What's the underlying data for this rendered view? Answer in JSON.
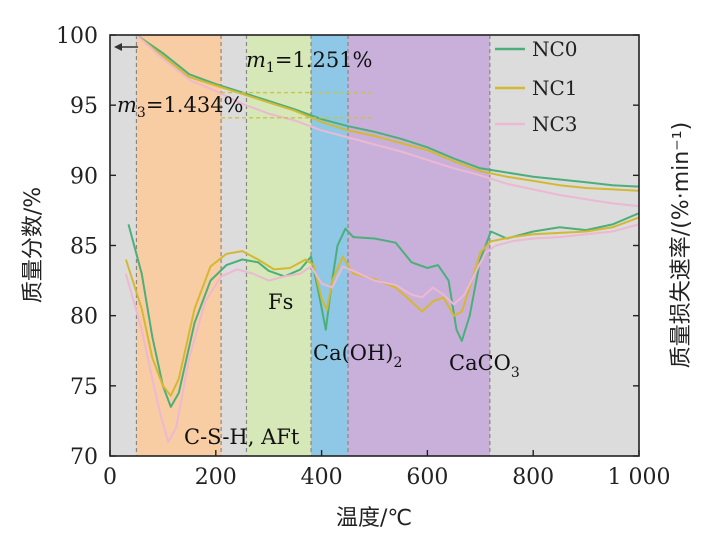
{
  "chart_data": {
    "type": "line",
    "xlabel": "温度/℃",
    "ylabel": "质量分数/%",
    "y2label": "质量损失速率/(%·min⁻¹)",
    "xlim": [
      0,
      1000
    ],
    "ylim": [
      70,
      100
    ],
    "x_ticks": [
      "0",
      "200",
      "400",
      "600",
      "800",
      "1 000"
    ],
    "y_ticks": [
      "70",
      "75",
      "80",
      "85",
      "90",
      "95",
      "100"
    ],
    "grid": false,
    "legend_position": "top-right",
    "bands": [
      {
        "from": 50,
        "to": 210,
        "color": "#f9cda3"
      },
      {
        "from": 258,
        "to": 380,
        "color": "#d6e8b8"
      },
      {
        "from": 380,
        "to": 450,
        "color": "#8ec8e6"
      },
      {
        "from": 450,
        "to": 718,
        "color": "#c8b0da"
      }
    ],
    "annotations": {
      "m1": {
        "prefix": "m",
        "sub": "1",
        "value": "=1.251%"
      },
      "m3": {
        "prefix": "m",
        "sub": "3",
        "value": "=1.434%"
      },
      "csh": "C-S-H, AFt",
      "fs": "Fs",
      "caoh": {
        "main": "Ca(OH)",
        "sub": "2"
      },
      "caco": {
        "main": "CaCO",
        "sub": "3"
      }
    },
    "series": [
      {
        "name": "NC0",
        "color": "#4caf7a",
        "mass": [
          [
            50,
            100
          ],
          [
            100,
            98.7
          ],
          [
            150,
            97.2
          ],
          [
            200,
            96.5
          ],
          [
            250,
            95.9
          ],
          [
            300,
            95.3
          ],
          [
            350,
            94.7
          ],
          [
            400,
            94.0
          ],
          [
            450,
            93.5
          ],
          [
            500,
            93.1
          ],
          [
            550,
            92.6
          ],
          [
            600,
            92.0
          ],
          [
            650,
            91.2
          ],
          [
            700,
            90.5
          ],
          [
            750,
            90.2
          ],
          [
            800,
            89.9
          ],
          [
            850,
            89.7
          ],
          [
            900,
            89.5
          ],
          [
            950,
            89.3
          ],
          [
            1000,
            89.2
          ]
        ],
        "dtg": [
          [
            35,
            86.5
          ],
          [
            60,
            83.0
          ],
          [
            80,
            78.5
          ],
          [
            100,
            75.0
          ],
          [
            115,
            73.5
          ],
          [
            130,
            74.5
          ],
          [
            160,
            79.5
          ],
          [
            190,
            82.5
          ],
          [
            220,
            83.6
          ],
          [
            250,
            84.0
          ],
          [
            280,
            83.8
          ],
          [
            300,
            83.2
          ],
          [
            330,
            82.8
          ],
          [
            360,
            83.3
          ],
          [
            380,
            84.2
          ],
          [
            395,
            81.5
          ],
          [
            408,
            79.0
          ],
          [
            418,
            82.0
          ],
          [
            430,
            85.0
          ],
          [
            445,
            86.2
          ],
          [
            460,
            85.6
          ],
          [
            500,
            85.5
          ],
          [
            540,
            85.2
          ],
          [
            570,
            83.8
          ],
          [
            600,
            83.4
          ],
          [
            620,
            83.6
          ],
          [
            640,
            82.5
          ],
          [
            655,
            79.0
          ],
          [
            665,
            78.2
          ],
          [
            680,
            80.0
          ],
          [
            700,
            84.0
          ],
          [
            720,
            86.0
          ],
          [
            750,
            85.5
          ],
          [
            800,
            86.0
          ],
          [
            850,
            86.3
          ],
          [
            900,
            86.1
          ],
          [
            950,
            86.5
          ],
          [
            1000,
            87.3
          ]
        ]
      },
      {
        "name": "NC1",
        "color": "#d4b833",
        "mass": [
          [
            50,
            100
          ],
          [
            100,
            98.5
          ],
          [
            150,
            97.0
          ],
          [
            200,
            96.4
          ],
          [
            250,
            95.8
          ],
          [
            300,
            95.2
          ],
          [
            350,
            94.6
          ],
          [
            400,
            93.8
          ],
          [
            450,
            93.2
          ],
          [
            500,
            92.8
          ],
          [
            550,
            92.3
          ],
          [
            600,
            91.8
          ],
          [
            650,
            91.0
          ],
          [
            700,
            90.3
          ],
          [
            750,
            89.9
          ],
          [
            800,
            89.6
          ],
          [
            850,
            89.3
          ],
          [
            900,
            89.1
          ],
          [
            950,
            89.0
          ],
          [
            1000,
            88.9
          ]
        ],
        "dtg": [
          [
            30,
            84.0
          ],
          [
            60,
            80.5
          ],
          [
            80,
            77.0
          ],
          [
            100,
            75.0
          ],
          [
            115,
            74.3
          ],
          [
            130,
            75.5
          ],
          [
            160,
            80.5
          ],
          [
            190,
            83.5
          ],
          [
            220,
            84.4
          ],
          [
            250,
            84.6
          ],
          [
            280,
            84.0
          ],
          [
            310,
            83.3
          ],
          [
            340,
            83.4
          ],
          [
            370,
            84.0
          ],
          [
            385,
            83.6
          ],
          [
            400,
            81.2
          ],
          [
            410,
            80.4
          ],
          [
            420,
            82.5
          ],
          [
            440,
            84.2
          ],
          [
            460,
            83.0
          ],
          [
            500,
            82.6
          ],
          [
            540,
            82.0
          ],
          [
            570,
            81.0
          ],
          [
            590,
            80.3
          ],
          [
            610,
            81.0
          ],
          [
            630,
            81.3
          ],
          [
            650,
            80.0
          ],
          [
            665,
            80.3
          ],
          [
            680,
            82.0
          ],
          [
            700,
            84.5
          ],
          [
            720,
            85.3
          ],
          [
            760,
            85.6
          ],
          [
            800,
            85.8
          ],
          [
            850,
            85.9
          ],
          [
            900,
            86.0
          ],
          [
            950,
            86.3
          ],
          [
            1000,
            87.0
          ]
        ]
      },
      {
        "name": "NC3",
        "color": "#ecb8d2",
        "mass": [
          [
            50,
            100
          ],
          [
            100,
            98.3
          ],
          [
            150,
            96.8
          ],
          [
            200,
            96.0
          ],
          [
            250,
            95.1
          ],
          [
            300,
            94.4
          ],
          [
            350,
            93.9
          ],
          [
            400,
            93.2
          ],
          [
            450,
            92.7
          ],
          [
            500,
            92.2
          ],
          [
            550,
            91.7
          ],
          [
            600,
            91.1
          ],
          [
            650,
            90.5
          ],
          [
            700,
            90.0
          ],
          [
            750,
            89.4
          ],
          [
            800,
            89.0
          ],
          [
            850,
            88.6
          ],
          [
            900,
            88.3
          ],
          [
            950,
            88.0
          ],
          [
            1000,
            87.8
          ]
        ],
        "dtg": [
          [
            30,
            83.0
          ],
          [
            60,
            79.0
          ],
          [
            80,
            75.5
          ],
          [
            95,
            73.0
          ],
          [
            110,
            71.0
          ],
          [
            125,
            72.0
          ],
          [
            150,
            77.0
          ],
          [
            180,
            81.0
          ],
          [
            210,
            82.8
          ],
          [
            240,
            83.3
          ],
          [
            270,
            83.0
          ],
          [
            300,
            82.5
          ],
          [
            330,
            82.8
          ],
          [
            360,
            83.0
          ],
          [
            380,
            83.5
          ],
          [
            400,
            82.3
          ],
          [
            420,
            82.0
          ],
          [
            440,
            83.5
          ],
          [
            460,
            83.2
          ],
          [
            500,
            82.5
          ],
          [
            540,
            82.2
          ],
          [
            570,
            81.5
          ],
          [
            590,
            81.3
          ],
          [
            610,
            82.0
          ],
          [
            630,
            81.5
          ],
          [
            650,
            80.8
          ],
          [
            670,
            81.5
          ],
          [
            690,
            83.0
          ],
          [
            710,
            84.5
          ],
          [
            730,
            85.0
          ],
          [
            760,
            85.3
          ],
          [
            800,
            85.5
          ],
          [
            850,
            85.6
          ],
          [
            900,
            85.8
          ],
          [
            950,
            86.0
          ],
          [
            1000,
            86.5
          ]
        ]
      }
    ]
  }
}
